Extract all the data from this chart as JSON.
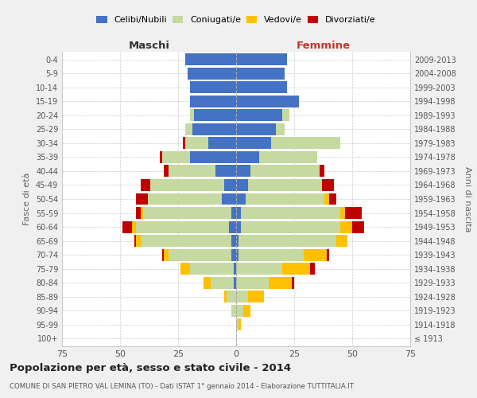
{
  "age_groups": [
    "100+",
    "95-99",
    "90-94",
    "85-89",
    "80-84",
    "75-79",
    "70-74",
    "65-69",
    "60-64",
    "55-59",
    "50-54",
    "45-49",
    "40-44",
    "35-39",
    "30-34",
    "25-29",
    "20-24",
    "15-19",
    "10-14",
    "5-9",
    "0-4"
  ],
  "birth_years": [
    "≤ 1913",
    "1914-1918",
    "1919-1923",
    "1924-1928",
    "1929-1933",
    "1934-1938",
    "1939-1943",
    "1944-1948",
    "1949-1953",
    "1954-1958",
    "1959-1963",
    "1964-1968",
    "1969-1973",
    "1974-1978",
    "1979-1983",
    "1984-1988",
    "1989-1993",
    "1994-1998",
    "1999-2003",
    "2004-2008",
    "2009-2013"
  ],
  "colors": {
    "celibi": "#4472c4",
    "coniugati": "#c5d9a0",
    "vedovi": "#ffc000",
    "divorziati": "#c00000"
  },
  "maschi": {
    "celibi": [
      0,
      0,
      0,
      0,
      1,
      1,
      2,
      2,
      3,
      2,
      6,
      5,
      9,
      20,
      12,
      19,
      18,
      20,
      20,
      21,
      22
    ],
    "coniugati": [
      0,
      0,
      2,
      4,
      10,
      19,
      27,
      39,
      40,
      38,
      32,
      32,
      20,
      12,
      10,
      3,
      2,
      0,
      0,
      0,
      0
    ],
    "vedovi": [
      0,
      0,
      0,
      1,
      3,
      4,
      2,
      2,
      2,
      1,
      0,
      0,
      0,
      0,
      0,
      0,
      0,
      0,
      0,
      0,
      0
    ],
    "divorziati": [
      0,
      0,
      0,
      0,
      0,
      0,
      1,
      1,
      4,
      2,
      5,
      4,
      2,
      1,
      1,
      0,
      0,
      0,
      0,
      0,
      0
    ]
  },
  "femmine": {
    "celibi": [
      0,
      0,
      0,
      0,
      0,
      0,
      1,
      1,
      2,
      2,
      4,
      5,
      6,
      10,
      15,
      17,
      20,
      27,
      22,
      21,
      22
    ],
    "coniugati": [
      0,
      1,
      3,
      5,
      14,
      20,
      28,
      42,
      43,
      43,
      34,
      32,
      30,
      25,
      30,
      4,
      3,
      0,
      0,
      0,
      0
    ],
    "vedovi": [
      0,
      1,
      3,
      7,
      10,
      12,
      10,
      5,
      5,
      2,
      2,
      0,
      0,
      0,
      0,
      0,
      0,
      0,
      0,
      0,
      0
    ],
    "divorziati": [
      0,
      0,
      0,
      0,
      1,
      2,
      1,
      0,
      5,
      7,
      3,
      5,
      2,
      0,
      0,
      0,
      0,
      0,
      0,
      0,
      0
    ]
  },
  "title": "Popolazione per età, sesso e stato civile - 2014",
  "subtitle": "COMUNE DI SAN PIETRO VAL LEMINA (TO) - Dati ISTAT 1° gennaio 2014 - Elaborazione TUTTITALIA.IT",
  "ylabel_left": "Fasce di età",
  "ylabel_right": "Anni di nascita",
  "xlabel_left": "Maschi",
  "xlabel_right": "Femmine",
  "xlim": 75,
  "background_color": "#f0f0f0",
  "plot_bg_color": "#ffffff",
  "grid_color": "#cccccc"
}
